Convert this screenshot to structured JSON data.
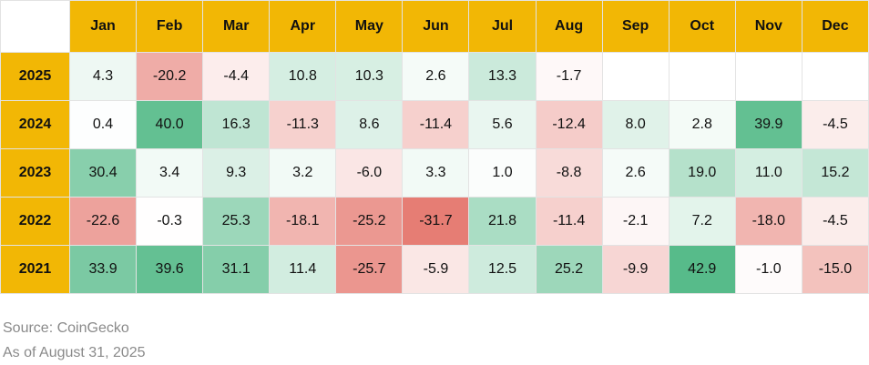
{
  "table": {
    "columns": [
      "Jan",
      "Feb",
      "Mar",
      "Apr",
      "May",
      "Jun",
      "Jul",
      "Aug",
      "Sep",
      "Oct",
      "Nov",
      "Dec"
    ],
    "rows": [
      {
        "label": "2025",
        "cells": [
          "4.3",
          "-20.2",
          "-4.4",
          "10.8",
          "10.3",
          "2.6",
          "13.3",
          "-1.7"
        ]
      },
      {
        "label": "2024",
        "cells": [
          "0.4",
          "40.0",
          "16.3",
          "-11.3",
          "8.6",
          "-11.4",
          "5.6",
          "-12.4",
          "8.0",
          "2.8",
          "39.9",
          "-4.5"
        ]
      },
      {
        "label": "2023",
        "cells": [
          "30.4",
          "3.4",
          "9.3",
          "3.2",
          "-6.0",
          "3.3",
          "1.0",
          "-8.8",
          "2.6",
          "19.0",
          "11.0",
          "15.2"
        ]
      },
      {
        "label": "2022",
        "cells": [
          "-22.6",
          "-0.3",
          "25.3",
          "-18.1",
          "-25.2",
          "-31.7",
          "21.8",
          "-11.4",
          "-2.1",
          "7.2",
          "-18.0",
          "-4.5"
        ]
      },
      {
        "label": "2021",
        "cells": [
          "33.9",
          "39.6",
          "31.1",
          "11.4",
          "-25.7",
          "-5.9",
          "12.5",
          "25.2",
          "-9.9",
          "42.9",
          "-1.0",
          "-15.0"
        ]
      }
    ]
  },
  "footer": {
    "source": "Source: CoinGecko",
    "date": "As of August 31, 2025"
  }
}
